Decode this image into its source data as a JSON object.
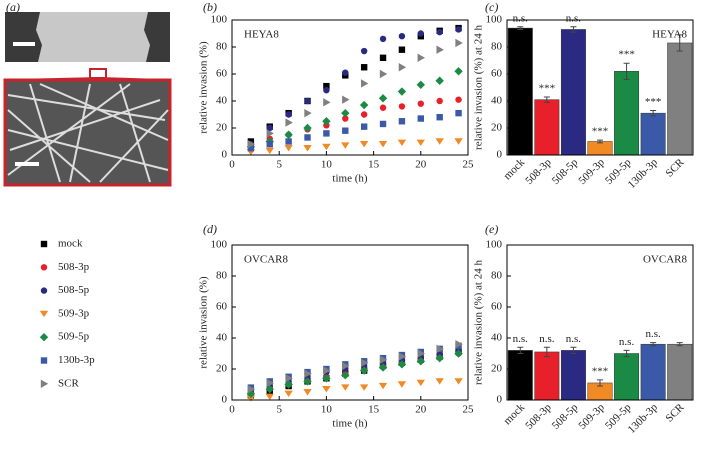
{
  "panel_labels": [
    "(a)",
    "(b)",
    "(c)",
    "(d)",
    "(e)"
  ],
  "chart_data": [
    {
      "type": "scatter",
      "title": "HEYA8",
      "xlabel": "time (h)",
      "ylabel": "relative invasion (%)",
      "x": [
        2,
        4,
        6,
        8,
        10,
        12,
        14,
        16,
        18,
        20,
        22,
        24
      ],
      "xlim": [
        0,
        25
      ],
      "xticks": [
        0,
        5,
        10,
        15,
        20,
        25
      ],
      "ylim": [
        0,
        100
      ],
      "yticks": [
        0,
        20,
        40,
        60,
        80,
        100
      ],
      "series": [
        {
          "name": "mock",
          "color": "#000000",
          "marker": "square",
          "values": [
            10,
            21,
            31,
            40,
            51,
            59,
            65,
            72,
            78,
            88,
            92,
            94
          ]
        },
        {
          "name": "508-3p",
          "color": "#e8202a",
          "marker": "circle",
          "values": [
            7,
            12,
            15,
            19,
            22,
            27,
            30,
            35,
            36,
            38,
            40,
            41
          ]
        },
        {
          "name": "508-5p",
          "color": "#2b2a82",
          "marker": "circle",
          "values": [
            8,
            20,
            30,
            40,
            48,
            61,
            77,
            86,
            88,
            90,
            91,
            93
          ]
        },
        {
          "name": "509-3p",
          "color": "#f08a24",
          "marker": "triangle-down",
          "values": [
            2,
            3,
            5,
            5,
            6,
            7,
            8,
            8,
            9,
            9,
            10,
            10
          ]
        },
        {
          "name": "509-5p",
          "color": "#1a8a45",
          "marker": "diamond",
          "values": [
            6,
            10,
            15,
            20,
            25,
            31,
            37,
            42,
            47,
            52,
            55,
            62
          ]
        },
        {
          "name": "130b-3p",
          "color": "#3a5aa8",
          "marker": "square",
          "values": [
            5,
            8,
            10,
            13,
            16,
            18,
            21,
            23,
            25,
            27,
            28,
            31
          ]
        },
        {
          "name": "SCR",
          "color": "#808080",
          "marker": "triangle-right",
          "values": [
            8,
            16,
            24,
            31,
            39,
            41,
            53,
            60,
            65,
            72,
            78,
            83
          ]
        }
      ]
    },
    {
      "type": "bar",
      "title": "HEYA8",
      "ylabel": "relative invasion (%) at 24 h",
      "categories": [
        "mock",
        "508-3p",
        "508-5p",
        "509-3p",
        "509-5p",
        "130b-3p",
        "SCR"
      ],
      "values": [
        94,
        41,
        93,
        10,
        62,
        31,
        83
      ],
      "errors": [
        1,
        2,
        2,
        1,
        6,
        2,
        6
      ],
      "colors": [
        "#000000",
        "#e8202a",
        "#2b2a82",
        "#f08a24",
        "#1a8a45",
        "#3a5aa8",
        "#808080"
      ],
      "annotations": [
        "n.s.",
        "***",
        "n.s.",
        "***",
        "***",
        "***",
        null
      ],
      "ylim": [
        0,
        100
      ],
      "yticks": [
        0,
        20,
        40,
        60,
        80,
        100
      ]
    },
    {
      "type": "scatter",
      "title": "OVCAR8",
      "xlabel": "time (h)",
      "ylabel": "relative invasion (%)",
      "x": [
        2,
        4,
        6,
        8,
        10,
        12,
        14,
        16,
        18,
        20,
        22,
        24
      ],
      "xlim": [
        0,
        25
      ],
      "xticks": [
        0,
        5,
        10,
        15,
        20,
        25
      ],
      "ylim": [
        0,
        100
      ],
      "yticks": [
        0,
        20,
        40,
        60,
        80,
        100
      ],
      "series": [
        {
          "color": "#000000",
          "marker": "square",
          "values": [
            3,
            6,
            9,
            12,
            14,
            17,
            19,
            22,
            24,
            26,
            28,
            31
          ]
        },
        {
          "color": "#e8202a",
          "marker": "circle",
          "values": [
            5,
            8,
            10,
            13,
            15,
            17,
            20,
            22,
            24,
            26,
            28,
            30
          ]
        },
        {
          "color": "#2b2a82",
          "marker": "circle",
          "values": [
            6,
            9,
            12,
            15,
            18,
            20,
            22,
            24,
            26,
            28,
            30,
            33
          ]
        },
        {
          "color": "#f08a24",
          "marker": "triangle-down",
          "values": [
            1,
            2,
            4,
            5,
            7,
            8,
            8,
            9,
            10,
            11,
            12,
            12
          ]
        },
        {
          "color": "#1a8a45",
          "marker": "diamond",
          "values": [
            4,
            7,
            10,
            12,
            14,
            16,
            19,
            21,
            23,
            25,
            27,
            30
          ]
        },
        {
          "color": "#3a5aa8",
          "marker": "square",
          "values": [
            8,
            12,
            15,
            18,
            20,
            23,
            25,
            27,
            29,
            31,
            33,
            35
          ]
        },
        {
          "color": "#808080",
          "marker": "triangle-right",
          "values": [
            7,
            11,
            14,
            17,
            19,
            22,
            24,
            26,
            28,
            30,
            33,
            36
          ]
        }
      ]
    },
    {
      "type": "bar",
      "title": "OVCAR8",
      "ylabel": "relative invasion (%) at 24 h",
      "categories": [
        "mock",
        "508-3p",
        "508-5p",
        "509-3p",
        "509-5p",
        "130b-3p",
        "SCR"
      ],
      "values": [
        32,
        31,
        32,
        11,
        30,
        36,
        36
      ],
      "errors": [
        2,
        3,
        2,
        2,
        2,
        1,
        1
      ],
      "colors": [
        "#000000",
        "#e8202a",
        "#2b2a82",
        "#f08a24",
        "#1a8a45",
        "#3a5aa8",
        "#808080"
      ],
      "annotations": [
        "n.s.",
        "n.s.",
        "n.s.",
        "***",
        "n.s.",
        "n.s.",
        null
      ],
      "ylim": [
        0,
        100
      ],
      "yticks": [
        0,
        20,
        40,
        60,
        80,
        100
      ]
    }
  ]
}
